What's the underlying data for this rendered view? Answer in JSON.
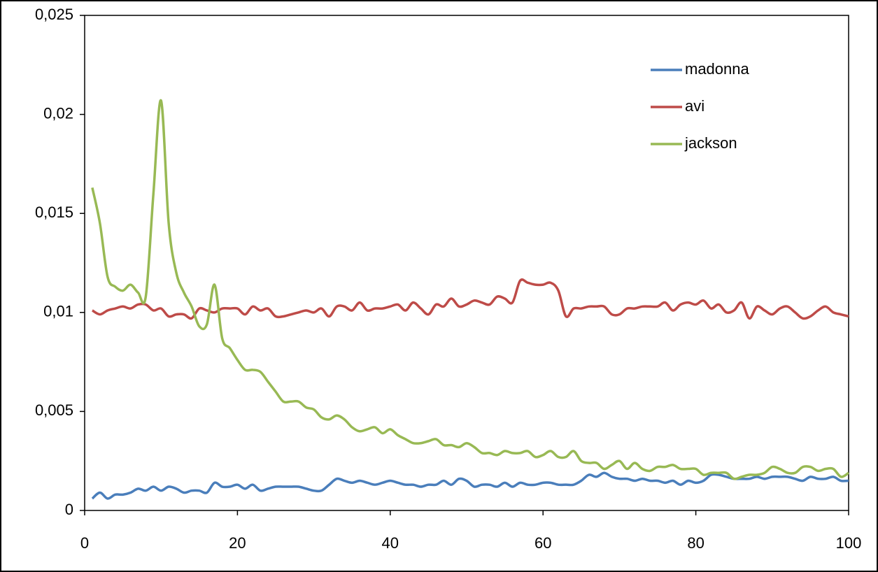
{
  "chart_data": {
    "type": "line",
    "x": [
      1,
      2,
      3,
      4,
      5,
      6,
      7,
      8,
      9,
      10,
      11,
      12,
      13,
      14,
      15,
      16,
      17,
      18,
      19,
      20,
      21,
      22,
      23,
      24,
      25,
      26,
      27,
      28,
      29,
      30,
      31,
      32,
      33,
      34,
      35,
      36,
      37,
      38,
      39,
      40,
      41,
      42,
      43,
      44,
      45,
      46,
      47,
      48,
      49,
      50,
      51,
      52,
      53,
      54,
      55,
      56,
      57,
      58,
      59,
      60,
      61,
      62,
      63,
      64,
      65,
      66,
      67,
      68,
      69,
      70,
      71,
      72,
      73,
      74,
      75,
      76,
      77,
      78,
      79,
      80,
      81,
      82,
      83,
      84,
      85,
      86,
      87,
      88,
      89,
      90,
      91,
      92,
      93,
      94,
      95,
      96,
      97,
      98,
      99,
      100
    ],
    "series": [
      {
        "name": "madonna",
        "color": "#4a7ebb",
        "values": [
          0.0006,
          0.0009,
          0.0006,
          0.0008,
          0.0008,
          0.0009,
          0.0011,
          0.001,
          0.0012,
          0.001,
          0.0012,
          0.0011,
          0.0009,
          0.001,
          0.001,
          0.0009,
          0.0014,
          0.0012,
          0.0012,
          0.0013,
          0.0011,
          0.0013,
          0.001,
          0.0011,
          0.0012,
          0.0012,
          0.0012,
          0.0012,
          0.0011,
          0.001,
          0.001,
          0.0013,
          0.0016,
          0.0015,
          0.0014,
          0.0015,
          0.0014,
          0.0013,
          0.0014,
          0.0015,
          0.0014,
          0.0013,
          0.0013,
          0.0012,
          0.0013,
          0.0013,
          0.0015,
          0.0013,
          0.0016,
          0.0015,
          0.0012,
          0.0013,
          0.0013,
          0.0012,
          0.0014,
          0.0012,
          0.0014,
          0.0013,
          0.0013,
          0.0014,
          0.0014,
          0.0013,
          0.0013,
          0.0013,
          0.0015,
          0.0018,
          0.0017,
          0.0019,
          0.0017,
          0.0016,
          0.0016,
          0.0015,
          0.0016,
          0.0015,
          0.0015,
          0.0014,
          0.0015,
          0.0013,
          0.0015,
          0.0014,
          0.0015,
          0.0018,
          0.0018,
          0.0017,
          0.0016,
          0.0016,
          0.0016,
          0.0017,
          0.0016,
          0.0017,
          0.0017,
          0.0017,
          0.0016,
          0.0015,
          0.0017,
          0.0016,
          0.0016,
          0.0017,
          0.0015,
          0.0015
        ]
      },
      {
        "name": "avi",
        "color": "#be4b48",
        "values": [
          0.0101,
          0.0099,
          0.0101,
          0.0102,
          0.0103,
          0.0102,
          0.0104,
          0.0104,
          0.0101,
          0.0102,
          0.0098,
          0.0099,
          0.0099,
          0.0097,
          0.0102,
          0.0101,
          0.01,
          0.0102,
          0.0102,
          0.0102,
          0.0099,
          0.0103,
          0.0101,
          0.0102,
          0.0098,
          0.0098,
          0.0099,
          0.01,
          0.0101,
          0.01,
          0.0102,
          0.0098,
          0.0103,
          0.0103,
          0.0101,
          0.0105,
          0.0101,
          0.0102,
          0.0102,
          0.0103,
          0.0104,
          0.0101,
          0.0105,
          0.0102,
          0.0099,
          0.0104,
          0.0103,
          0.0107,
          0.0103,
          0.0104,
          0.0106,
          0.0105,
          0.0104,
          0.0108,
          0.0107,
          0.0105,
          0.0116,
          0.0115,
          0.0114,
          0.0114,
          0.0115,
          0.0111,
          0.0098,
          0.0102,
          0.0102,
          0.0103,
          0.0103,
          0.0103,
          0.0099,
          0.0099,
          0.0102,
          0.0102,
          0.0103,
          0.0103,
          0.0103,
          0.0105,
          0.0101,
          0.0104,
          0.0105,
          0.0104,
          0.0106,
          0.0102,
          0.0104,
          0.01,
          0.0101,
          0.0105,
          0.0097,
          0.0103,
          0.0101,
          0.0099,
          0.0102,
          0.0103,
          0.01,
          0.0097,
          0.0098,
          0.0101,
          0.0103,
          0.01,
          0.0099,
          0.0098
        ]
      },
      {
        "name": "jackson",
        "color": "#98b954",
        "values": [
          0.0163,
          0.0145,
          0.0118,
          0.0113,
          0.0111,
          0.0114,
          0.011,
          0.0108,
          0.016,
          0.0207,
          0.0145,
          0.012,
          0.011,
          0.0103,
          0.0093,
          0.0094,
          0.0114,
          0.0087,
          0.0082,
          0.0076,
          0.0071,
          0.0071,
          0.007,
          0.0065,
          0.006,
          0.0055,
          0.0055,
          0.0055,
          0.0052,
          0.0051,
          0.0047,
          0.0046,
          0.0048,
          0.0046,
          0.0042,
          0.004,
          0.0041,
          0.0042,
          0.0039,
          0.0041,
          0.0038,
          0.0036,
          0.0034,
          0.0034,
          0.0035,
          0.0036,
          0.0033,
          0.0033,
          0.0032,
          0.0034,
          0.0032,
          0.0029,
          0.0029,
          0.0028,
          0.003,
          0.0029,
          0.0029,
          0.003,
          0.0027,
          0.0028,
          0.003,
          0.0027,
          0.0027,
          0.003,
          0.0025,
          0.0024,
          0.0024,
          0.0021,
          0.0023,
          0.0025,
          0.0021,
          0.0024,
          0.0021,
          0.002,
          0.0022,
          0.0022,
          0.0023,
          0.0021,
          0.0021,
          0.0021,
          0.0018,
          0.0019,
          0.0019,
          0.0019,
          0.0016,
          0.0017,
          0.0018,
          0.0018,
          0.0019,
          0.0022,
          0.0021,
          0.0019,
          0.0019,
          0.0022,
          0.0022,
          0.002,
          0.0021,
          0.0021,
          0.0017,
          0.0019
        ]
      }
    ],
    "xlim": [
      0,
      100
    ],
    "xticks": [
      0,
      20,
      40,
      60,
      80,
      100
    ],
    "ylim": [
      0,
      0.025
    ],
    "yticks": [
      0,
      {
        "value": 0.005,
        "label": "0,005"
      },
      {
        "value": 0.01,
        "label": "0,01"
      },
      {
        "value": 0.015,
        "label": "0,015"
      },
      {
        "value": 0.02,
        "label": "0,02"
      },
      {
        "value": 0.025,
        "label": "0,025"
      }
    ],
    "legend": "upper right",
    "smooth": true
  }
}
